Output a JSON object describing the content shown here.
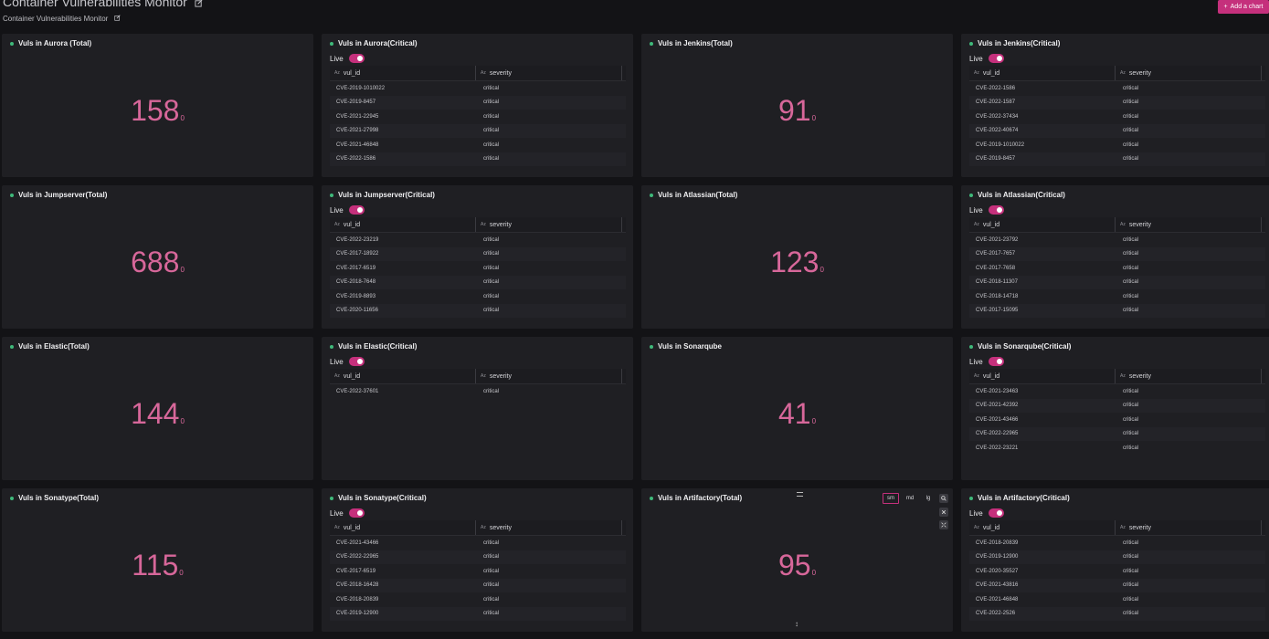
{
  "header": {
    "title": "Container Vulnerabilities Monitor",
    "subtitle": "Container Vulnerabilities Monitor",
    "add_chart_label": "Add a chart"
  },
  "colors": {
    "accent": "#c5307c",
    "value": "#d7679a",
    "dot": "#3fb97a",
    "background": "#131316",
    "panel": "#1f1f23"
  },
  "panel_common": {
    "live_label": "Live",
    "col1_header": "vul_id",
    "col2_header": "severity",
    "type_badge": "Az",
    "unit": "0"
  },
  "toolbar": {
    "sm": "sm",
    "md": "md",
    "lg": "lg"
  },
  "panels": [
    {
      "type": "stat",
      "title": "Vuls in Aurora (Total)",
      "value": "158"
    },
    {
      "type": "table",
      "title": "Vuls in Aurora(Critical)",
      "rows": [
        [
          "CVE-2019-1010022",
          "critical"
        ],
        [
          "CVE-2019-8457",
          "critical"
        ],
        [
          "CVE-2021-22945",
          "critical"
        ],
        [
          "CVE-2021-27998",
          "critical"
        ],
        [
          "CVE-2021-46848",
          "critical"
        ],
        [
          "CVE-2022-1586",
          "critical"
        ]
      ]
    },
    {
      "type": "stat",
      "title": "Vuls in Jenkins(Total)",
      "value": "91"
    },
    {
      "type": "table",
      "title": "Vuls in Jenkins(Critical)",
      "rows": [
        [
          "CVE-2022-1586",
          "critical"
        ],
        [
          "CVE-2022-1587",
          "critical"
        ],
        [
          "CVE-2022-37434",
          "critical"
        ],
        [
          "CVE-2022-40674",
          "critical"
        ],
        [
          "CVE-2019-1010022",
          "critical"
        ],
        [
          "CVE-2019-8457",
          "critical"
        ]
      ]
    },
    {
      "type": "stat",
      "title": "Vuls in Jumpserver(Total)",
      "value": "688"
    },
    {
      "type": "table",
      "title": "Vuls in Jumpserver(Critical)",
      "rows": [
        [
          "CVE-2022-23219",
          "critical"
        ],
        [
          "CVE-2017-18922",
          "critical"
        ],
        [
          "CVE-2017-6519",
          "critical"
        ],
        [
          "CVE-2018-7648",
          "critical"
        ],
        [
          "CVE-2019-8893",
          "critical"
        ],
        [
          "CVE-2020-11656",
          "critical"
        ]
      ]
    },
    {
      "type": "stat",
      "title": "Vuls in Atlassian(Total)",
      "value": "123"
    },
    {
      "type": "table",
      "title": "Vuls in Atlassian(Critical)",
      "rows": [
        [
          "CVE-2021-23792",
          "critical"
        ],
        [
          "CVE-2017-7657",
          "critical"
        ],
        [
          "CVE-2017-7658",
          "critical"
        ],
        [
          "CVE-2018-11307",
          "critical"
        ],
        [
          "CVE-2018-14718",
          "critical"
        ],
        [
          "CVE-2017-15095",
          "critical"
        ]
      ]
    },
    {
      "type": "stat",
      "title": "Vuls in Elastic(Total)",
      "value": "144"
    },
    {
      "type": "table",
      "title": "Vuls in Elastic(Critical)",
      "rows": [
        [
          "CVE-2022-37601",
          "critical"
        ]
      ]
    },
    {
      "type": "stat",
      "title": "Vuls in Sonarqube",
      "value": "41"
    },
    {
      "type": "table",
      "title": "Vuls in Sonarqube(Critical)",
      "rows": [
        [
          "CVE-2021-23463",
          "critical"
        ],
        [
          "CVE-2021-42392",
          "critical"
        ],
        [
          "CVE-2021-43466",
          "critical"
        ],
        [
          "CVE-2022-22965",
          "critical"
        ],
        [
          "CVE-2022-23221",
          "critical"
        ]
      ]
    },
    {
      "type": "stat",
      "title": "Vuls in Sonatype(Total)",
      "value": "115"
    },
    {
      "type": "table",
      "title": "Vuls in Sonatype(Critical)",
      "rows": [
        [
          "CVE-2021-43466",
          "critical"
        ],
        [
          "CVE-2022-22965",
          "critical"
        ],
        [
          "CVE-2017-6519",
          "critical"
        ],
        [
          "CVE-2018-16428",
          "critical"
        ],
        [
          "CVE-2018-20839",
          "critical"
        ],
        [
          "CVE-2019-12900",
          "critical"
        ]
      ]
    },
    {
      "type": "stat",
      "title": "Vuls in Artifactory(Total)",
      "value": "95",
      "tools": true
    },
    {
      "type": "table",
      "title": "Vuls in Artifactory(Critical)",
      "rows": [
        [
          "CVE-2018-20839",
          "critical"
        ],
        [
          "CVE-2019-12900",
          "critical"
        ],
        [
          "CVE-2020-35527",
          "critical"
        ],
        [
          "CVE-2021-43816",
          "critical"
        ],
        [
          "CVE-2021-46848",
          "critical"
        ],
        [
          "CVE-2022-2526",
          "critical"
        ]
      ]
    }
  ]
}
